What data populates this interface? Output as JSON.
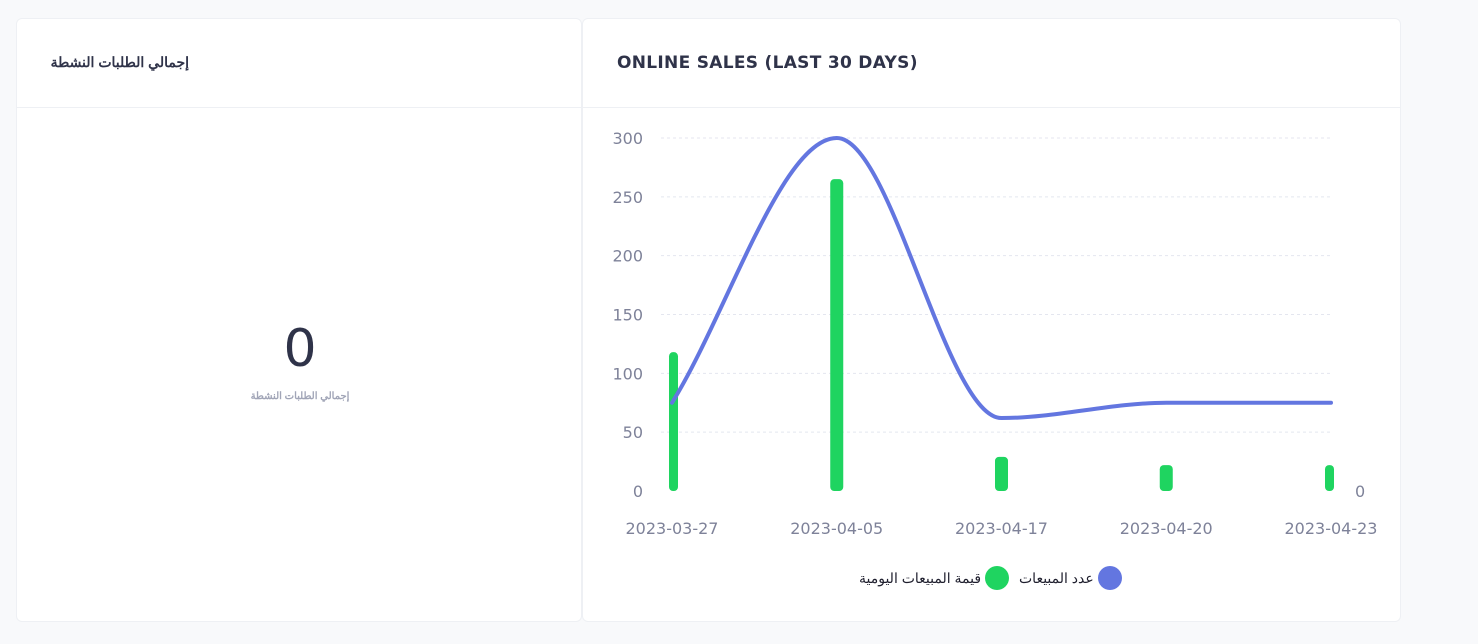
{
  "left_card": {
    "title": "إجمالي الطلبات النشطة",
    "value": "0",
    "label": "إجمالي الطلبات النشطة"
  },
  "right_card": {
    "title": "ONLINE SALES (LAST 30 DAYS)"
  },
  "chart_data": {
    "type": "bar",
    "title": "ONLINE SALES (LAST 30 DAYS)",
    "categories": [
      "2023-03-27",
      "2023-04-05",
      "2023-04-17",
      "2023-04-20",
      "2023-04-23"
    ],
    "series": [
      {
        "name": "قيمة المبيعات اليومية",
        "type": "bar",
        "color": "#1fd460",
        "values": [
          118,
          265,
          29,
          22,
          22
        ]
      },
      {
        "name": "عدد المبيعات",
        "type": "line",
        "color": "#6376e0",
        "values": [
          75,
          300,
          62,
          75,
          75
        ]
      }
    ],
    "y_ticks": [
      "0",
      "50",
      "100",
      "150",
      "200",
      "250",
      "300"
    ],
    "right_axis_ticks": [
      "0"
    ],
    "ylim": [
      0,
      300
    ],
    "grid": true,
    "legend_position": "bottom"
  }
}
